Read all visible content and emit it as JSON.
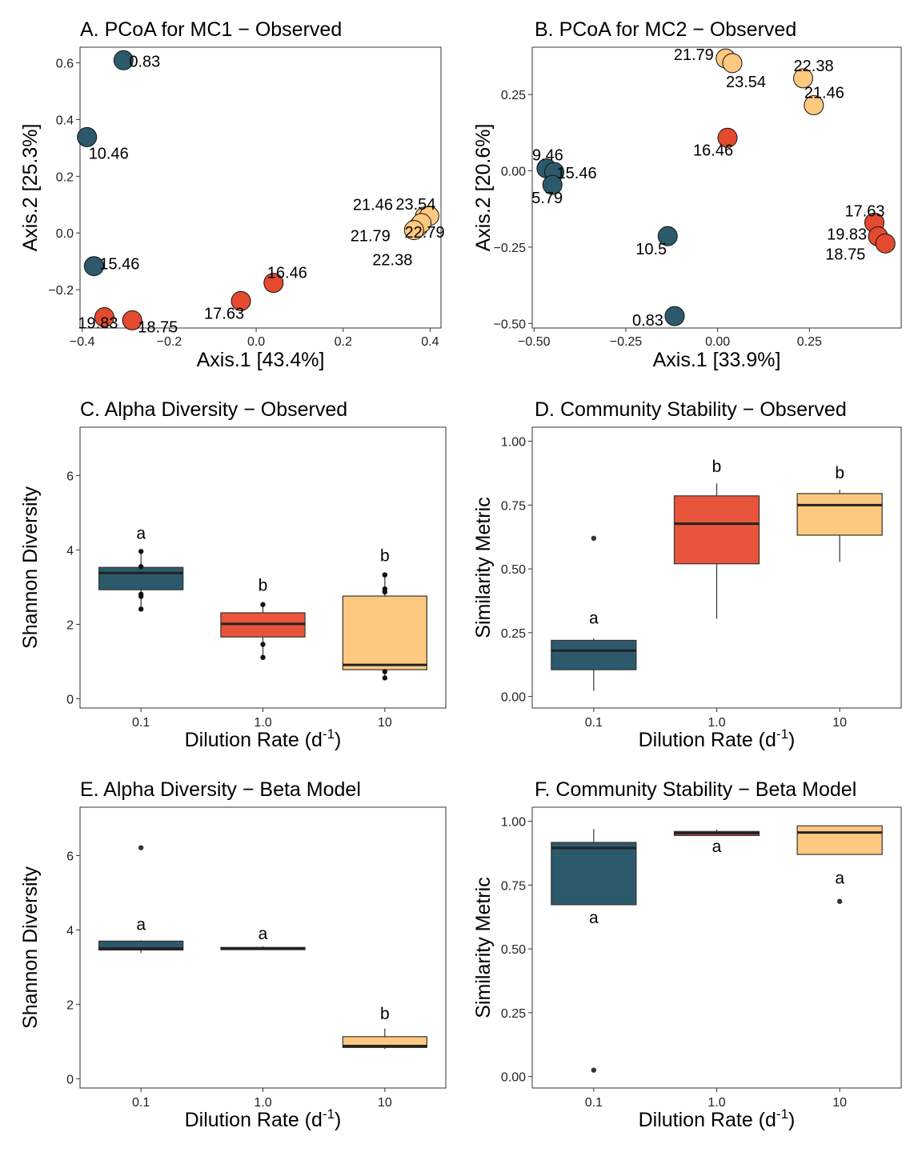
{
  "colors": {
    "low": "#2c5a6c",
    "mid": "#e34a2f",
    "high": "#fdc87f",
    "box_low": "#2c5a6c",
    "box_mid": "#e8553b",
    "box_high": "#fdc87f"
  },
  "chart_data": [
    {
      "type": "scatter",
      "panel": "A",
      "title": "A. PCoA for MC1 − Observed",
      "xlabel": "Axis.1   [43.4%]",
      "ylabel": "Axis.2   [25.3%]",
      "xlim": [
        -0.405,
        0.425
      ],
      "ylim": [
        -0.335,
        0.655
      ],
      "x_ticks": [
        -0.4,
        -0.2,
        0.0,
        0.2,
        0.4
      ],
      "x_tick_labels": [
        "−0.4",
        "−0.2",
        "0.0",
        "0.2",
        "0.4"
      ],
      "y_ticks": [
        -0.2,
        0.0,
        0.2,
        0.4,
        0.6
      ],
      "y_tick_labels": [
        "−0.2",
        "0.0",
        "0.2",
        "0.4",
        "0.6"
      ],
      "points": [
        {
          "x": -0.305,
          "y": 0.609,
          "label": "0.83",
          "group": "low"
        },
        {
          "x": -0.389,
          "y": 0.338,
          "label": "10.46",
          "group": "low"
        },
        {
          "x": -0.373,
          "y": -0.117,
          "label": "15.46",
          "group": "low"
        },
        {
          "x": 0.04,
          "y": -0.176,
          "label": "16.46",
          "group": "mid"
        },
        {
          "x": -0.035,
          "y": -0.24,
          "label": "17.63",
          "group": "mid"
        },
        {
          "x": -0.349,
          "y": -0.297,
          "label": "19.83",
          "group": "mid"
        },
        {
          "x": -0.285,
          "y": -0.308,
          "label": "18.75",
          "group": "mid"
        },
        {
          "x": 0.388,
          "y": 0.058,
          "label": "21.46",
          "group": "high"
        },
        {
          "x": 0.398,
          "y": 0.06,
          "label": "23.54",
          "group": "high"
        },
        {
          "x": 0.373,
          "y": 0.022,
          "label": "21.79",
          "group": "high"
        },
        {
          "x": 0.38,
          "y": 0.035,
          "label": "22.79",
          "group": "high"
        },
        {
          "x": 0.363,
          "y": 0.01,
          "label": "22.38",
          "group": "high"
        }
      ]
    },
    {
      "type": "scatter",
      "panel": "B",
      "title": "B. PCoA for MC2 − Observed",
      "xlabel": "Axis.1   [33.9%]",
      "ylabel": "Axis.2   [20.6%]",
      "xlim": [
        -0.505,
        0.5
      ],
      "ylim": [
        -0.515,
        0.405
      ],
      "x_ticks": [
        -0.5,
        -0.25,
        0.0,
        0.25
      ],
      "x_tick_labels": [
        "−0.50",
        "−0.25",
        "0.00",
        "0.25"
      ],
      "y_ticks": [
        -0.5,
        -0.25,
        0.0,
        0.25
      ],
      "y_tick_labels": [
        "−0.50",
        "−0.25",
        "0.00",
        "0.25"
      ],
      "points": [
        {
          "x": 0.022,
          "y": 0.368,
          "label": "21.79",
          "group": "high"
        },
        {
          "x": 0.04,
          "y": 0.353,
          "label": "23.54",
          "group": "high"
        },
        {
          "x": 0.233,
          "y": 0.303,
          "label": "22.38",
          "group": "high"
        },
        {
          "x": 0.262,
          "y": 0.215,
          "label": "21.46",
          "group": "high"
        },
        {
          "x": 0.027,
          "y": 0.108,
          "label": "16.46",
          "group": "mid"
        },
        {
          "x": -0.466,
          "y": 0.008,
          "label": "9.46",
          "group": "low"
        },
        {
          "x": -0.445,
          "y": -0.004,
          "label": "15.46",
          "group": "low"
        },
        {
          "x": -0.45,
          "y": -0.046,
          "label": "5.79",
          "group": "low"
        },
        {
          "x": -0.136,
          "y": -0.214,
          "label": "10.5",
          "group": "low"
        },
        {
          "x": -0.117,
          "y": -0.476,
          "label": "0.83",
          "group": "low"
        },
        {
          "x": 0.427,
          "y": -0.17,
          "label": "17.63",
          "group": "mid"
        },
        {
          "x": 0.437,
          "y": -0.215,
          "label": "19.83",
          "group": "mid"
        },
        {
          "x": 0.457,
          "y": -0.238,
          "label": "18.75",
          "group": "mid"
        }
      ]
    },
    {
      "type": "box",
      "panel": "C",
      "title": "C. Alpha Diversity − Observed",
      "xlabel": "Dilution Rate (d",
      "xlabel_sup": "-1",
      "xlabel_end": ")",
      "ylabel": "Shannon Diversity",
      "ylim": [
        -0.25,
        7.3
      ],
      "y_ticks": [
        0,
        2,
        4,
        6
      ],
      "y_tick_labels": [
        "0",
        "2",
        "4",
        "6"
      ],
      "categories": [
        "0.1",
        "1.0",
        "10"
      ],
      "boxes": [
        {
          "q1": 2.93,
          "median": 3.38,
          "q3": 3.53,
          "whisker_low": 2.41,
          "whisker_high": 3.96,
          "points": [
            2.41,
            2.75,
            2.81,
            3.55,
            3.96
          ],
          "outliers": [],
          "letter": "a",
          "letter_y": 4.3,
          "group": "low"
        },
        {
          "q1": 1.66,
          "median": 2.01,
          "q3": 2.31,
          "whisker_low": 1.11,
          "whisker_high": 2.53,
          "points": [
            1.11,
            1.46,
            2.53
          ],
          "outliers": [],
          "letter": "b",
          "letter_y": 2.9,
          "group": "mid"
        },
        {
          "q1": 0.78,
          "median": 0.91,
          "q3": 2.76,
          "whisker_low": 0.56,
          "whisker_high": 3.33,
          "points": [
            0.56,
            0.73,
            2.87,
            2.95,
            3.33
          ],
          "outliers": [],
          "letter": "b",
          "letter_y": 3.7,
          "group": "high"
        }
      ]
    },
    {
      "type": "box",
      "panel": "D",
      "title": "D. Community Stability − Observed",
      "xlabel": "Dilution Rate (d",
      "xlabel_sup": "-1",
      "xlabel_end": ")",
      "ylabel": "Similarity Metric",
      "ylim": [
        -0.045,
        1.055
      ],
      "y_ticks": [
        0.0,
        0.25,
        0.5,
        0.75,
        1.0
      ],
      "y_tick_labels": [
        "0.00",
        "0.25",
        "0.50",
        "0.75",
        "1.00"
      ],
      "categories": [
        "0.1",
        "1.0",
        "10"
      ],
      "boxes": [
        {
          "q1": 0.105,
          "median": 0.18,
          "q3": 0.22,
          "whisker_low": 0.022,
          "whisker_high": 0.228,
          "points": [],
          "outliers": [
            0.62
          ],
          "letter": "a",
          "letter_y": 0.285,
          "group": "low"
        },
        {
          "q1": 0.52,
          "median": 0.677,
          "q3": 0.786,
          "whisker_low": 0.305,
          "whisker_high": 0.835,
          "points": [],
          "outliers": [],
          "letter": "b",
          "letter_y": 0.88,
          "group": "mid"
        },
        {
          "q1": 0.632,
          "median": 0.75,
          "q3": 0.795,
          "whisker_low": 0.527,
          "whisker_high": 0.81,
          "points": [],
          "outliers": [],
          "letter": "b",
          "letter_y": 0.855,
          "group": "high"
        }
      ]
    },
    {
      "type": "box",
      "panel": "E",
      "title": "E. Alpha Diversity − Beta Model",
      "xlabel": "Dilution Rate (d",
      "xlabel_sup": "-1",
      "xlabel_end": ")",
      "ylabel": "Shannon Diversity",
      "ylim": [
        -0.25,
        7.3
      ],
      "y_ticks": [
        0,
        2,
        4,
        6
      ],
      "y_tick_labels": [
        "0",
        "2",
        "4",
        "6"
      ],
      "categories": [
        "0.1",
        "1.0",
        "10"
      ],
      "boxes": [
        {
          "q1": 3.46,
          "median": 3.5,
          "q3": 3.7,
          "whisker_low": 3.38,
          "whisker_high": 3.72,
          "points": [],
          "outliers": [
            6.21
          ],
          "letter": "a",
          "letter_y": 4.0,
          "group": "low"
        },
        {
          "q1": 3.47,
          "median": 3.5,
          "q3": 3.53,
          "whisker_low": 3.47,
          "whisker_high": 3.56,
          "points": [],
          "outliers": [],
          "letter": "a",
          "letter_y": 3.75,
          "group": "low"
        },
        {
          "q1": 0.84,
          "median": 0.88,
          "q3": 1.13,
          "whisker_low": 0.8,
          "whisker_high": 1.35,
          "points": [],
          "outliers": [],
          "letter": "b",
          "letter_y": 1.6,
          "group": "high"
        }
      ]
    },
    {
      "type": "box",
      "panel": "F",
      "title": "F. Community Stability − Beta Model",
      "xlabel": "Dilution Rate (d",
      "xlabel_sup": "-1",
      "xlabel_end": ")",
      "ylabel": "Similarity Metric",
      "ylim": [
        -0.045,
        1.055
      ],
      "y_ticks": [
        0.0,
        0.25,
        0.5,
        0.75,
        1.0
      ],
      "y_tick_labels": [
        "0.00",
        "0.25",
        "0.50",
        "0.75",
        "1.00"
      ],
      "categories": [
        "0.1",
        "1.0",
        "10"
      ],
      "boxes": [
        {
          "q1": 0.673,
          "median": 0.895,
          "q3": 0.917,
          "whisker_low": 0.673,
          "whisker_high": 0.97,
          "points": [],
          "outliers": [
            0.025
          ],
          "letter": "a",
          "letter_y": 0.6,
          "group": "low"
        },
        {
          "q1": 0.944,
          "median": 0.953,
          "q3": 0.96,
          "whisker_low": 0.944,
          "whisker_high": 0.967,
          "points": [],
          "outliers": [],
          "letter": "a",
          "letter_y": 0.88,
          "group": "mid"
        },
        {
          "q1": 0.87,
          "median": 0.956,
          "q3": 0.982,
          "whisker_low": 0.87,
          "whisker_high": 0.982,
          "points": [],
          "outliers": [
            0.686
          ],
          "letter": "a",
          "letter_y": 0.755,
          "group": "high"
        }
      ]
    }
  ]
}
